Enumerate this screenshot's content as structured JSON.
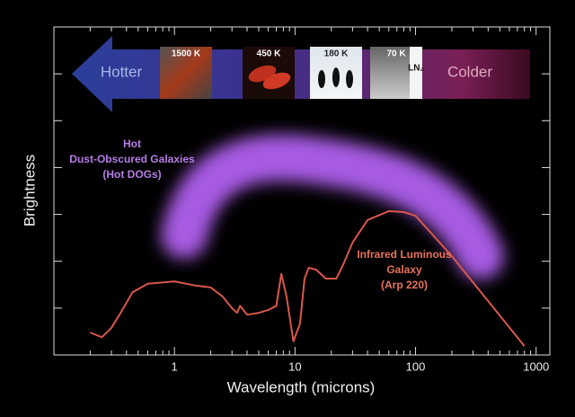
{
  "chart_data": {
    "type": "line",
    "xlabel": "Wavelength (microns)",
    "ylabel": "Brightness",
    "xscale": "log",
    "xlim": [
      0.1,
      1300
    ],
    "ylim": [
      0,
      7
    ],
    "xticks": [
      1,
      10,
      100,
      1000
    ],
    "xticks_minor": [
      0.2,
      0.3,
      0.4,
      0.5,
      0.6,
      0.7,
      0.8,
      0.9,
      2,
      3,
      4,
      5,
      6,
      7,
      8,
      9,
      20,
      30,
      40,
      50,
      60,
      70,
      80,
      90,
      200,
      300,
      400,
      500,
      600,
      700,
      800,
      900
    ],
    "yticks": [
      1,
      2,
      3,
      4,
      5,
      6
    ],
    "x": [
      0.2,
      0.25,
      0.3,
      0.35,
      0.45,
      0.6,
      1.0,
      1.5,
      2.0,
      2.5,
      3.0,
      3.3,
      3.5,
      4,
      5,
      6,
      7,
      7.7,
      8.5,
      9.7,
      11,
      12,
      13,
      15,
      18,
      22,
      25,
      30,
      40,
      60,
      80,
      100,
      200,
      400,
      800
    ],
    "series": [
      {
        "color": "#d9574c",
        "values": [
          0.48,
          0.38,
          0.58,
          0.86,
          1.34,
          1.52,
          1.57,
          1.48,
          1.44,
          1.25,
          1.0,
          0.9,
          1.05,
          0.86,
          0.9,
          0.96,
          1.05,
          1.73,
          1.25,
          0.29,
          0.67,
          1.63,
          1.86,
          1.82,
          1.63,
          1.63,
          1.92,
          2.4,
          2.88,
          3.07,
          3.05,
          2.97,
          2.11,
          1.15,
          0.19
        ]
      }
    ],
    "annotations": {
      "hot_dogs": [
        "Hot",
        "Dust-Obscured Galaxies",
        "(Hot DOGs)"
      ],
      "arp220": [
        "Infrared Luminous",
        "Galaxy",
        "(Arp 220)"
      ]
    },
    "temperature_scale": {
      "hotter": "Hotter",
      "colder": "Colder",
      "labels": [
        "1500 K",
        "450 K",
        "180 K",
        "70 K"
      ],
      "ln2": "LN₂"
    }
  }
}
